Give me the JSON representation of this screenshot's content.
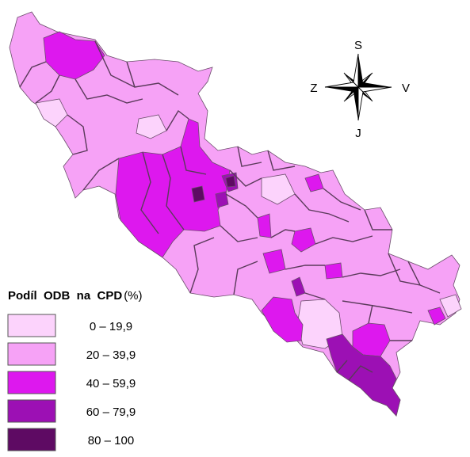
{
  "compass": {
    "north": "S",
    "south": "J",
    "west": "Z",
    "east": "V"
  },
  "legend": {
    "title": "Podíl  ODB  na  CPD",
    "unit": "(%)",
    "classes": [
      {
        "range": "0  –  19,9",
        "color": "#fcd3fc"
      },
      {
        "range": "20  –  39,9",
        "color": "#f6a2f6"
      },
      {
        "range": "40  –  59,9",
        "color": "#dd18ee"
      },
      {
        "range": "60  –  79,9",
        "color": "#9c10b4"
      },
      {
        "range": "80  –  100",
        "color": "#5e0a63"
      }
    ]
  },
  "colors": {
    "outline": "#6b4d6b",
    "background": "#ffffff"
  }
}
